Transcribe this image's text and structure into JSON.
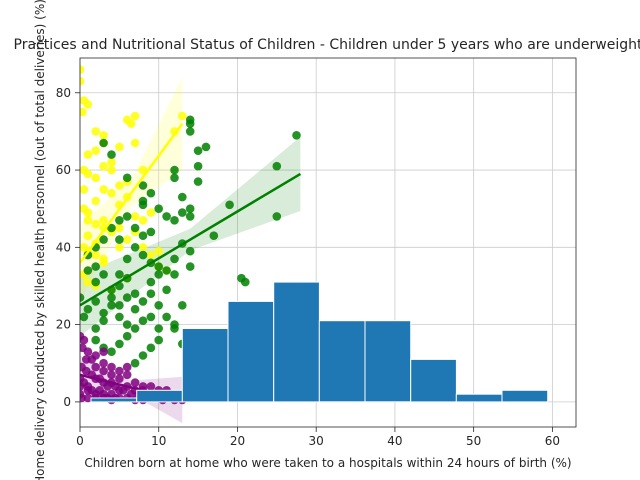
{
  "chart_data": {
    "type": "scatter",
    "title": "Practices and Nutritional Status of Children - Children under 5 years who are underweight",
    "xlabel": "Children born at home who were taken to a hospitals within 24 hours of birth (%)",
    "ylabel": "Home delivery conducted by skilled health personnel (out of total deliveries) (%)",
    "xlim": [
      0,
      63
    ],
    "ylim": [
      -6.5,
      89
    ],
    "x_ticks": [
      0,
      10,
      20,
      30,
      40,
      50,
      60
    ],
    "y_ticks": [
      0,
      20,
      40,
      60,
      80
    ],
    "grid": true,
    "histogram": {
      "color": "#1f77b4",
      "bins": [
        {
          "x0": 1.4,
          "x1": 7.2,
          "value": 1
        },
        {
          "x0": 7.2,
          "x1": 13.0,
          "value": 3
        },
        {
          "x0": 13.0,
          "x1": 18.8,
          "value": 19
        },
        {
          "x0": 18.8,
          "x1": 24.6,
          "value": 26
        },
        {
          "x0": 24.6,
          "x1": 30.4,
          "value": 31
        },
        {
          "x0": 30.4,
          "x1": 36.2,
          "value": 21
        },
        {
          "x0": 36.2,
          "x1": 42.0,
          "value": 21
        },
        {
          "x0": 42.0,
          "x1": 47.8,
          "value": 11
        },
        {
          "x0": 47.8,
          "x1": 53.6,
          "value": 2
        },
        {
          "x0": 53.6,
          "x1": 59.4,
          "value": 3
        }
      ]
    },
    "series": [
      {
        "color": "#ffff00",
        "regression": {
          "x": [
            0,
            13
          ],
          "y": [
            36,
            72
          ]
        },
        "band_color": "#ffff00",
        "points": [
          [
            0,
            86
          ],
          [
            0,
            83
          ],
          [
            0.5,
            78
          ],
          [
            1,
            77
          ],
          [
            0.3,
            75
          ],
          [
            2,
            70
          ],
          [
            3,
            69
          ],
          [
            6,
            73
          ],
          [
            7,
            74
          ],
          [
            6.5,
            72
          ],
          [
            2,
            65
          ],
          [
            3,
            67
          ],
          [
            4,
            62
          ],
          [
            0.5,
            60
          ],
          [
            1,
            59
          ],
          [
            2,
            58
          ],
          [
            3,
            55
          ],
          [
            4,
            54
          ],
          [
            5,
            56
          ],
          [
            6,
            57
          ],
          [
            0.5,
            50
          ],
          [
            1,
            49
          ],
          [
            1,
            47
          ],
          [
            2,
            46
          ],
          [
            3,
            45
          ],
          [
            4,
            44
          ],
          [
            5,
            45
          ],
          [
            7,
            48
          ],
          [
            8,
            47
          ],
          [
            9,
            49
          ],
          [
            0.5,
            40
          ],
          [
            1,
            39
          ],
          [
            2,
            38
          ],
          [
            3,
            37
          ],
          [
            5,
            40
          ],
          [
            6,
            42
          ],
          [
            7,
            44
          ],
          [
            8,
            40
          ],
          [
            9,
            38
          ],
          [
            10,
            39
          ],
          [
            0.5,
            33
          ],
          [
            1,
            31
          ],
          [
            2,
            30
          ],
          [
            4,
            29
          ],
          [
            6,
            32
          ],
          [
            3,
            47
          ],
          [
            5,
            51
          ],
          [
            6,
            53
          ],
          [
            2,
            52
          ],
          [
            4,
            60
          ],
          [
            0.5,
            55
          ],
          [
            1,
            64
          ],
          [
            3,
            61
          ],
          [
            5,
            66
          ],
          [
            7,
            67
          ],
          [
            8,
            60
          ],
          [
            1,
            43
          ],
          [
            2,
            41
          ],
          [
            3,
            36
          ],
          [
            10,
            35
          ],
          [
            11,
            34
          ],
          [
            13,
            74
          ],
          [
            12,
            70
          ]
        ]
      },
      {
        "color": "#008000",
        "regression": {
          "x": [
            0,
            28
          ],
          "y": [
            25,
            59
          ]
        },
        "band_color": "#008000",
        "points": [
          [
            27.5,
            69
          ],
          [
            25,
            61
          ],
          [
            25,
            48
          ],
          [
            19,
            51
          ],
          [
            17,
            43
          ],
          [
            15,
            57
          ],
          [
            15,
            61
          ],
          [
            15,
            65
          ],
          [
            16,
            66
          ],
          [
            14,
            70
          ],
          [
            14,
            72
          ],
          [
            14,
            73
          ],
          [
            12,
            60
          ],
          [
            12,
            58
          ],
          [
            13,
            53
          ],
          [
            13,
            49
          ],
          [
            12,
            47
          ],
          [
            11,
            48
          ],
          [
            13,
            41
          ],
          [
            12,
            37
          ],
          [
            14,
            35
          ],
          [
            14,
            39
          ],
          [
            11,
            34
          ],
          [
            12,
            33
          ],
          [
            10,
            35
          ],
          [
            9,
            36
          ],
          [
            8,
            38
          ],
          [
            8,
            43
          ],
          [
            9,
            44
          ],
          [
            10,
            50
          ],
          [
            9,
            54
          ],
          [
            8,
            52
          ],
          [
            8,
            51
          ],
          [
            7,
            45
          ],
          [
            7,
            40
          ],
          [
            6,
            37
          ],
          [
            6,
            32
          ],
          [
            5,
            30
          ],
          [
            5,
            33
          ],
          [
            4,
            29
          ],
          [
            4,
            27
          ],
          [
            4,
            25
          ],
          [
            3,
            23
          ],
          [
            3,
            21
          ],
          [
            2,
            19
          ],
          [
            2,
            16
          ],
          [
            3,
            14
          ],
          [
            4,
            13
          ],
          [
            5,
            15
          ],
          [
            6,
            17
          ],
          [
            7,
            19
          ],
          [
            8,
            21
          ],
          [
            9,
            22
          ],
          [
            10,
            25
          ],
          [
            11,
            29
          ],
          [
            10,
            33
          ],
          [
            9,
            31
          ],
          [
            7,
            28
          ],
          [
            6,
            27
          ],
          [
            5,
            25
          ],
          [
            5,
            22
          ],
          [
            6,
            20
          ],
          [
            7,
            24
          ],
          [
            8,
            26
          ],
          [
            9,
            28
          ],
          [
            3,
            33
          ],
          [
            2,
            35
          ],
          [
            1,
            34
          ],
          [
            1,
            38
          ],
          [
            2,
            40
          ],
          [
            3,
            42
          ],
          [
            4,
            45
          ],
          [
            5,
            47
          ],
          [
            6,
            48
          ],
          [
            4,
            64
          ],
          [
            3,
            67
          ],
          [
            2,
            31
          ],
          [
            20.5,
            32
          ],
          [
            21,
            31
          ],
          [
            12,
            20
          ],
          [
            8,
            12
          ],
          [
            7,
            10
          ],
          [
            9,
            14
          ],
          [
            10,
            16
          ],
          [
            12,
            19
          ],
          [
            13,
            25
          ],
          [
            11,
            22
          ],
          [
            10,
            19
          ],
          [
            14,
            50
          ],
          [
            14,
            48
          ],
          [
            13,
            15
          ],
          [
            13.5,
            12
          ],
          [
            8,
            56
          ],
          [
            6,
            58
          ],
          [
            5,
            42
          ],
          [
            2,
            26
          ],
          [
            1,
            24
          ],
          [
            0.5,
            22
          ],
          [
            0,
            27
          ]
        ]
      },
      {
        "color": "#800080",
        "regression": {
          "x": [
            0,
            13
          ],
          "y": [
            7,
            0.5
          ]
        },
        "band_color": "#800080",
        "points": [
          [
            0,
            17
          ],
          [
            0.5,
            16
          ],
          [
            0.3,
            14
          ],
          [
            1,
            13
          ],
          [
            1.5,
            11
          ],
          [
            0.2,
            9
          ],
          [
            0.8,
            8
          ],
          [
            1.5,
            7
          ],
          [
            2,
            6
          ],
          [
            2.5,
            6
          ],
          [
            3,
            5
          ],
          [
            3.5,
            4
          ],
          [
            4,
            5
          ],
          [
            4.5,
            4
          ],
          [
            5,
            3
          ],
          [
            5.5,
            3
          ],
          [
            6,
            4
          ],
          [
            6.5,
            2
          ],
          [
            7,
            3
          ],
          [
            7.5,
            2
          ],
          [
            8,
            3
          ],
          [
            8.5,
            2
          ],
          [
            9,
            1
          ],
          [
            9.5,
            2
          ],
          [
            10,
            1
          ],
          [
            10.5,
            0.5
          ],
          [
            11,
            1
          ],
          [
            12,
            0.5
          ],
          [
            13,
            0.5
          ],
          [
            0.5,
            5
          ],
          [
            1,
            4
          ],
          [
            1.5,
            3
          ],
          [
            2,
            2
          ],
          [
            2.5,
            3
          ],
          [
            3,
            2
          ],
          [
            3.5,
            1
          ],
          [
            4,
            2
          ],
          [
            4.5,
            1
          ],
          [
            0,
            6
          ],
          [
            0,
            4
          ],
          [
            0,
            2
          ],
          [
            0.2,
            1
          ],
          [
            1,
            1
          ],
          [
            2,
            1
          ],
          [
            3,
            1
          ],
          [
            4,
            0.5
          ],
          [
            5,
            1
          ],
          [
            6,
            1
          ],
          [
            7,
            0.5
          ],
          [
            8,
            0.5
          ],
          [
            2,
            9
          ],
          [
            3,
            8
          ],
          [
            4,
            7
          ],
          [
            5,
            6
          ],
          [
            6,
            7
          ],
          [
            7,
            5
          ],
          [
            8,
            4
          ],
          [
            9,
            4
          ],
          [
            10,
            3
          ],
          [
            11,
            3
          ],
          [
            1,
            3
          ],
          [
            0.8,
            11
          ],
          [
            3,
            10
          ],
          [
            4,
            9
          ],
          [
            5,
            8
          ],
          [
            6,
            9
          ],
          [
            2,
            12
          ],
          [
            3,
            13
          ]
        ]
      }
    ]
  }
}
